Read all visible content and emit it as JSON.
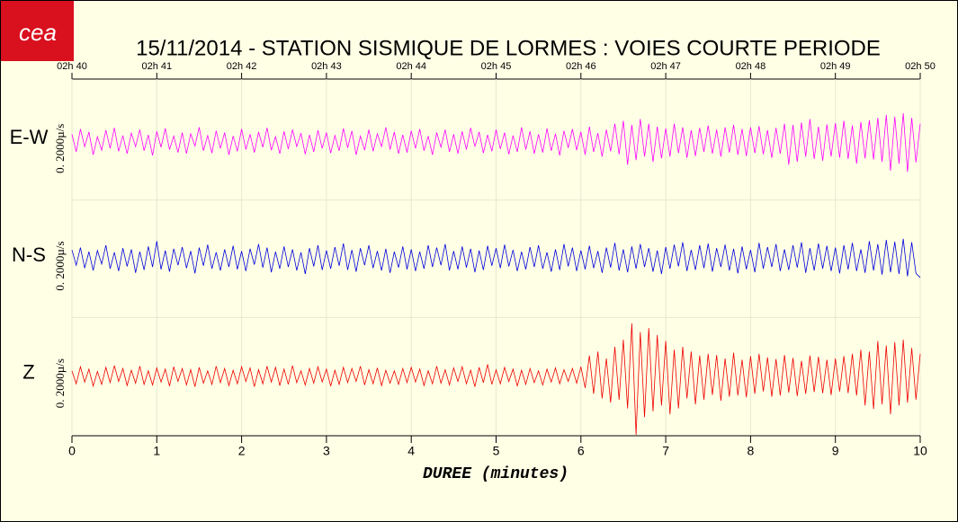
{
  "logo": "cea",
  "chart_data": {
    "type": "line",
    "title": "15/11/2014  -  STATION SISMIQUE DE LORMES : VOIES COURTE PERIODE",
    "x_label": "DUREE (minutes)",
    "scale_label": "0. 2000µ/s",
    "grid": true,
    "xlim": [
      0,
      10
    ],
    "xticks": [
      0,
      1,
      2,
      3,
      4,
      5,
      6,
      7,
      8,
      9,
      10
    ],
    "top_xticks": [
      {
        "value": 0,
        "label": "02h 40"
      },
      {
        "value": 1,
        "label": "02h 41"
      },
      {
        "value": 2,
        "label": "02h 42"
      },
      {
        "value": 3,
        "label": "02h 43"
      },
      {
        "value": 4,
        "label": "02h 44"
      },
      {
        "value": 5,
        "label": "02h 45"
      },
      {
        "value": 6,
        "label": "02h 46"
      },
      {
        "value": 7,
        "label": "02h 47"
      },
      {
        "value": 8,
        "label": "02h 48"
      },
      {
        "value": 9,
        "label": "02h 49"
      },
      {
        "value": 10,
        "label": "02h 50"
      }
    ],
    "ylim": [
      -1000,
      1000
    ],
    "x": [
      0,
      0.05,
      0.1,
      0.15,
      0.2,
      0.25,
      0.3,
      0.35,
      0.4,
      0.45,
      0.5,
      0.55,
      0.6,
      0.65,
      0.7,
      0.75,
      0.8,
      0.85,
      0.9,
      0.95,
      1,
      1.05,
      1.1,
      1.15,
      1.2,
      1.25,
      1.3,
      1.35,
      1.4,
      1.45,
      1.5,
      1.55,
      1.6,
      1.65,
      1.7,
      1.75,
      1.8,
      1.85,
      1.9,
      1.95,
      2,
      2.05,
      2.1,
      2.15,
      2.2,
      2.25,
      2.3,
      2.35,
      2.4,
      2.45,
      2.5,
      2.55,
      2.6,
      2.65,
      2.7,
      2.75,
      2.8,
      2.85,
      2.9,
      2.95,
      3,
      3.05,
      3.1,
      3.15,
      3.2,
      3.25,
      3.3,
      3.35,
      3.4,
      3.45,
      3.5,
      3.55,
      3.6,
      3.65,
      3.7,
      3.75,
      3.8,
      3.85,
      3.9,
      3.95,
      4,
      4.05,
      4.1,
      4.15,
      4.2,
      4.25,
      4.3,
      4.35,
      4.4,
      4.45,
      4.5,
      4.55,
      4.6,
      4.65,
      4.7,
      4.75,
      4.8,
      4.85,
      4.9,
      4.95,
      5,
      5.05,
      5.1,
      5.15,
      5.2,
      5.25,
      5.3,
      5.35,
      5.4,
      5.45,
      5.5,
      5.55,
      5.6,
      5.65,
      5.7,
      5.75,
      5.8,
      5.85,
      5.9,
      5.95,
      6,
      6.05,
      6.1,
      6.15,
      6.2,
      6.25,
      6.3,
      6.35,
      6.4,
      6.45,
      6.5,
      6.55,
      6.6,
      6.65,
      6.7,
      6.75,
      6.8,
      6.85,
      6.9,
      6.95,
      7,
      7.05,
      7.1,
      7.15,
      7.2,
      7.25,
      7.3,
      7.35,
      7.4,
      7.45,
      7.5,
      7.55,
      7.6,
      7.65,
      7.7,
      7.75,
      7.8,
      7.85,
      7.9,
      7.95,
      8,
      8.05,
      8.1,
      8.15,
      8.2,
      8.25,
      8.3,
      8.35,
      8.4,
      8.45,
      8.5,
      8.55,
      8.6,
      8.65,
      8.7,
      8.75,
      8.8,
      8.85,
      8.9,
      8.95,
      9,
      9.05,
      9.1,
      9.15,
      9.2,
      9.25,
      9.3,
      9.35,
      9.4,
      9.45,
      9.5,
      9.55,
      9.6,
      9.65,
      9.7,
      9.75,
      9.8,
      9.85,
      9.9,
      9.95,
      10
    ],
    "series": [
      {
        "name": "E-W",
        "color": "#ff00ff",
        "values": [
          120,
          -180,
          210,
          -90,
          160,
          -230,
          80,
          -150,
          190,
          -120,
          230,
          -170,
          100,
          -210,
          140,
          -90,
          200,
          -160,
          110,
          -240,
          170,
          -100,
          220,
          -140,
          90,
          -190,
          150,
          -210,
          130,
          -80,
          240,
          -160,
          100,
          -200,
          180,
          -120,
          150,
          -230,
          90,
          -170,
          210,
          -140,
          120,
          -190,
          160,
          -100,
          230,
          -150,
          80,
          -210,
          170,
          -130,
          200,
          -90,
          140,
          -220,
          110,
          -180,
          190,
          -120,
          150,
          -200,
          100,
          -160,
          220,
          -110,
          180,
          -230,
          90,
          -150,
          200,
          -170,
          130,
          -90,
          240,
          -140,
          160,
          -210,
          110,
          -190,
          180,
          -120,
          210,
          -160,
          90,
          -230,
          150,
          -100,
          200,
          -180,
          120,
          -210,
          170,
          -140,
          230,
          -90,
          160,
          -200,
          110,
          -170,
          200,
          -130,
          150,
          -220,
          100,
          -180,
          240,
          -140,
          170,
          -210,
          120,
          -190,
          220,
          -160,
          130,
          -240,
          180,
          -110,
          210,
          -150,
          160,
          -230,
          250,
          -180,
          140,
          -260,
          200,
          -170,
          300,
          -220,
          350,
          -400,
          280,
          -320,
          380,
          -260,
          300,
          -350,
          250,
          -290,
          220,
          -260,
          300,
          -200,
          240,
          -280,
          190,
          -250,
          230,
          -180,
          270,
          -210,
          200,
          -260,
          240,
          -190,
          280,
          -230,
          210,
          -250,
          240,
          -200,
          260,
          -220,
          190,
          -280,
          230,
          -210,
          300,
          -400,
          280,
          -350,
          320,
          -260,
          380,
          -300,
          250,
          -330,
          290,
          -260,
          310,
          -280,
          350,
          -300,
          270,
          -380,
          330,
          -290,
          360,
          -310,
          400,
          -350,
          450,
          -500,
          420,
          -380,
          480,
          -520,
          400,
          -360,
          300
        ]
      },
      {
        "name": "N-S",
        "color": "#0000dd",
        "values": [
          150,
          -110,
          190,
          -160,
          120,
          -200,
          140,
          -90,
          230,
          -170,
          110,
          -210,
          180,
          -130,
          160,
          -240,
          120,
          -190,
          210,
          -140,
          300,
          -180,
          140,
          -220,
          170,
          -110,
          200,
          -160,
          130,
          -250,
          190,
          -120,
          240,
          -170,
          110,
          -200,
          160,
          -140,
          220,
          -180,
          130,
          -210,
          170,
          -100,
          250,
          -150,
          190,
          -230,
          120,
          -170,
          210,
          -140,
          160,
          -200,
          110,
          -260,
          180,
          -130,
          230,
          -190,
          140,
          -170,
          200,
          -120,
          260,
          -190,
          150,
          -220,
          180,
          -110,
          230,
          -160,
          130,
          -200,
          170,
          -240,
          120,
          -150,
          210,
          -180,
          160,
          -210,
          120,
          -170,
          230,
          -140,
          190,
          -110,
          250,
          -200,
          130,
          -180,
          210,
          -150,
          170,
          -230,
          140,
          -190,
          220,
          -120,
          180,
          -160,
          240,
          -130,
          150,
          -210,
          120,
          -180,
          200,
          -140,
          230,
          -170,
          110,
          -220,
          160,
          -190,
          250,
          -130,
          190,
          -210,
          140,
          -180,
          220,
          -160,
          130,
          -240,
          190,
          -150,
          270,
          -200,
          160,
          -230,
          210,
          -170,
          250,
          -140,
          180,
          -220,
          140,
          -260,
          200,
          -170,
          240,
          -130,
          280,
          -210,
          150,
          -190,
          230,
          -160,
          260,
          -220,
          180,
          -140,
          240,
          -200,
          170,
          -250,
          210,
          -180,
          150,
          -230,
          270,
          -170,
          200,
          -140,
          250,
          -210,
          160,
          -190,
          230,
          -150,
          280,
          -240,
          180,
          -200,
          260,
          -170,
          220,
          -210,
          190,
          -250,
          230,
          -180,
          270,
          -210,
          160,
          -240,
          300,
          -200,
          250,
          -270,
          320,
          -230,
          290,
          -260,
          340,
          -300,
          280,
          -250,
          -320
        ]
      },
      {
        "name": "Z",
        "color": "#ee0000",
        "values": [
          90,
          -130,
          160,
          -100,
          120,
          -170,
          80,
          -140,
          150,
          -110,
          180,
          -90,
          130,
          -160,
          100,
          -120,
          170,
          -140,
          90,
          -150,
          140,
          -100,
          120,
          -170,
          160,
          -90,
          130,
          -150,
          110,
          -180,
          150,
          -120,
          90,
          -140,
          170,
          -110,
          130,
          -160,
          100,
          -130,
          160,
          -90,
          140,
          -180,
          110,
          -130,
          170,
          -100,
          150,
          -160,
          120,
          -140,
          180,
          -110,
          90,
          -150,
          130,
          -120,
          160,
          -100,
          120,
          -170,
          100,
          -140,
          150,
          -110,
          130,
          -90,
          170,
          -150,
          110,
          -130,
          140,
          -160,
          100,
          -120,
          90,
          -140,
          130,
          -110,
          150,
          -100,
          120,
          -160,
          90,
          -130,
          170,
          -120,
          110,
          -150,
          140,
          -90,
          160,
          -130,
          100,
          -180,
          150,
          -110,
          200,
          -140,
          110,
          -130,
          150,
          -90,
          120,
          -170,
          100,
          -140,
          130,
          -110,
          90,
          -150,
          120,
          -100,
          140,
          -130,
          110,
          -90,
          130,
          -120,
          160,
          -200,
          350,
          -300,
          420,
          -380,
          300,
          -450,
          500,
          -400,
          620,
          -550,
          900,
          -1000,
          750,
          -700,
          820,
          -600,
          700,
          -500,
          600,
          -650,
          450,
          -550,
          500,
          -380,
          420,
          -480,
          350,
          -400,
          380,
          -320,
          360,
          -420,
          300,
          -350,
          400,
          -330,
          280,
          -360,
          340,
          -300,
          380,
          -260,
          320,
          -350,
          290,
          -330,
          360,
          -280,
          310,
          -340,
          260,
          -300,
          350,
          -270,
          330,
          -290,
          280,
          -320,
          300,
          -260,
          340,
          -290,
          380,
          -330,
          450,
          -500,
          420,
          -560,
          600,
          -480,
          520,
          -650,
          580,
          -500,
          620,
          -450,
          480,
          -400,
          380
        ]
      }
    ]
  }
}
